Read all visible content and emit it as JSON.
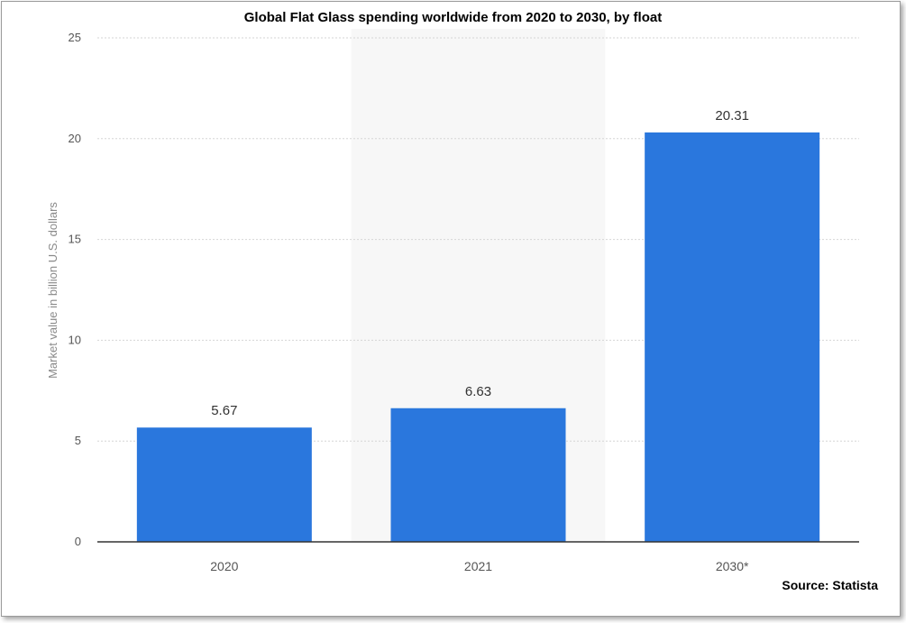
{
  "chart_data": {
    "type": "bar",
    "title": "Global Flat Glass spending worldwide from 2020 to 2030, by float",
    "xlabel": "",
    "ylabel": "Market value in billion U.S. dollars",
    "categories": [
      "2020",
      "2021",
      "2030*"
    ],
    "values": [
      5.67,
      6.63,
      20.31
    ],
    "value_labels": [
      "5.67",
      "6.63",
      "20.31"
    ],
    "ylim": [
      0,
      25
    ],
    "yticks": [
      0,
      5,
      10,
      15,
      20,
      25
    ],
    "grid": true,
    "highlight_category_index": 1,
    "bar_color": "#2a77dd",
    "highlight_color": "#f7f7f7",
    "source": "Source: Statista"
  }
}
